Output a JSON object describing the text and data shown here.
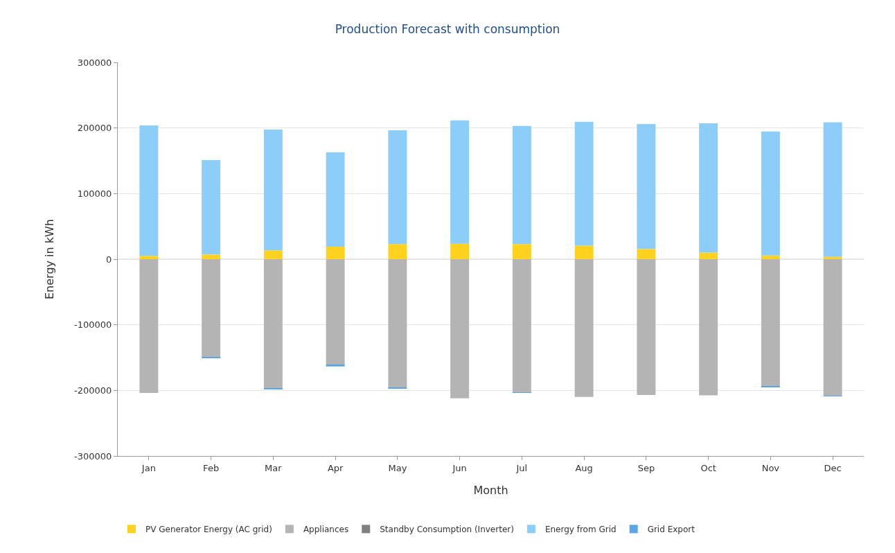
{
  "chart_data": {
    "type": "bar",
    "title": "Production Forecast with consumption",
    "xlabel": "Month",
    "ylabel": "Energy in kWh",
    "categories": [
      "Jan",
      "Feb",
      "Mar",
      "Apr",
      "May",
      "Jun",
      "Jul",
      "Aug",
      "Sep",
      "Oct",
      "Nov",
      "Dec"
    ],
    "stacked": true,
    "series": [
      {
        "name": "PV Generator Energy (AC grid)",
        "color": "#ffd21f",
        "values": [
          5000,
          7000,
          13500,
          19000,
          23000,
          23500,
          23000,
          20500,
          15500,
          10000,
          5500,
          3500
        ]
      },
      {
        "name": "Appliances",
        "color": "#b4b4b4",
        "values": [
          -204000,
          -149000,
          -197500,
          -160500,
          -196000,
          -212000,
          -203000,
          -210000,
          -207000,
          -207500,
          -194000,
          -208500
        ]
      },
      {
        "name": "Standby Consumption (Inverter)",
        "color": "#808080",
        "values": [
          null,
          null,
          null,
          null,
          null,
          null,
          null,
          null,
          null,
          null,
          null,
          null
        ]
      },
      {
        "name": "Energy from Grid",
        "color": "#8ccdfa",
        "values": [
          199000,
          144000,
          184000,
          144000,
          173500,
          188000,
          180000,
          189000,
          190500,
          197000,
          189000,
          205000
        ]
      },
      {
        "name": "Grid Export",
        "color": "#5aa5e6",
        "values": [
          null,
          -1500,
          -500,
          -3000,
          -500,
          null,
          -500,
          null,
          null,
          null,
          -500,
          -500
        ]
      }
    ],
    "ylim": [
      -300000,
      300000
    ],
    "yticks": [
      -300000,
      -200000,
      -100000,
      0,
      100000,
      200000,
      300000
    ],
    "grid": "y",
    "legend": "bottom"
  }
}
